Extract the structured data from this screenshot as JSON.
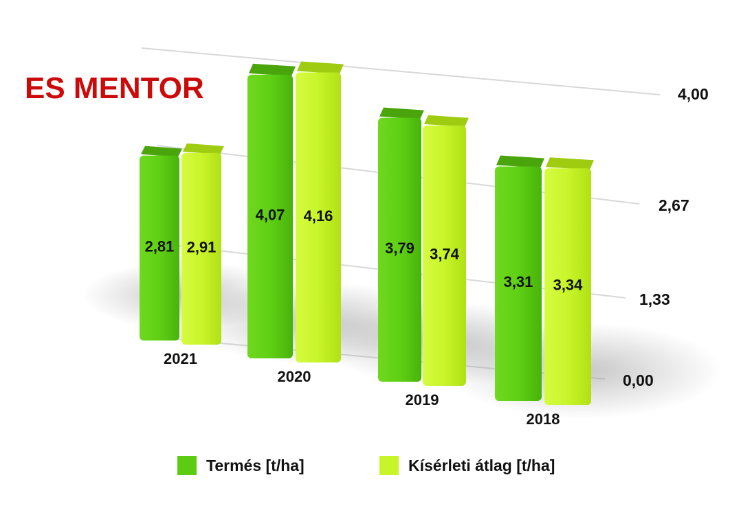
{
  "brand": {
    "label": "ES MENTOR"
  },
  "colors": {
    "brand": "#cc0a0a",
    "series1": "#5ccc12",
    "series2": "#c8f52a"
  },
  "chart_data": {
    "type": "bar",
    "title": "ES MENTOR",
    "categories": [
      "2021",
      "2020",
      "2019",
      "2018"
    ],
    "series": [
      {
        "name": "Termés [t/ha]",
        "values": [
          2.81,
          4.07,
          3.79,
          3.31
        ],
        "labels": [
          "2,81",
          "4,07",
          "3,79",
          "3,31"
        ]
      },
      {
        "name": "Kísérleti átlag [t/ha]",
        "values": [
          2.91,
          4.16,
          3.74,
          3.34
        ],
        "labels": [
          "2,91",
          "4,16",
          "3,74",
          "3,34"
        ]
      }
    ],
    "y_ticks": [
      {
        "value": 0.0,
        "label": "0,00"
      },
      {
        "value": 1.33,
        "label": "1,33"
      },
      {
        "value": 2.67,
        "label": "2,67"
      },
      {
        "value": 4.0,
        "label": "4,00"
      }
    ],
    "ylim": [
      0,
      4.0
    ],
    "grid": true,
    "legend_position": "bottom",
    "style": "3d-perspective"
  }
}
